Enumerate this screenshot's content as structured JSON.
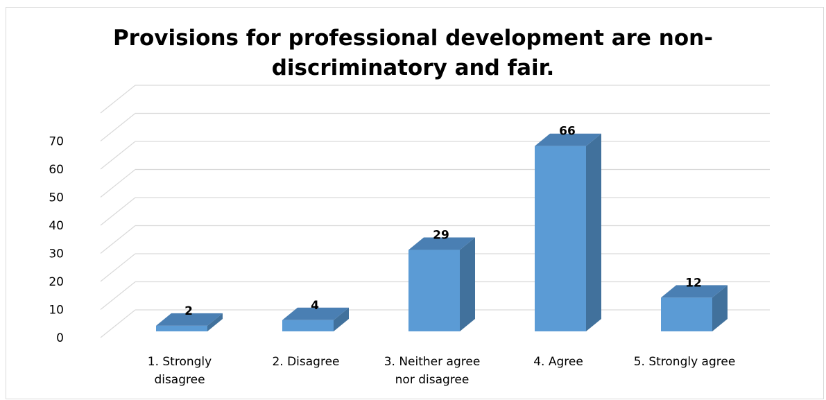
{
  "chart_data": {
    "type": "bar",
    "title_lines": [
      "Provisions for professional development are non-",
      "discriminatory and fair."
    ],
    "categories": [
      "1. Strongly disagree",
      "2. Disagree",
      "3. Neither agree nor disagree",
      "4. Agree",
      "5. Strongly agree"
    ],
    "category_label_lines": [
      [
        "1. Strongly",
        "disagree"
      ],
      [
        "2. Disagree"
      ],
      [
        "3. Neither agree",
        "nor disagree"
      ],
      [
        "4. Agree"
      ],
      [
        "5. Strongly agree"
      ]
    ],
    "values": [
      2,
      4,
      29,
      66,
      12
    ],
    "y_ticks": [
      "0",
      "10",
      "20",
      "30",
      "40",
      "50",
      "60",
      "70"
    ],
    "ylim": [
      0,
      80
    ],
    "grid": true,
    "legend": "none",
    "bar_3d": true,
    "colors": {
      "bar_front": "#5b9bd5",
      "bar_side": "#41719c",
      "bar_top": "#4a7fb3",
      "grid": "#d9d9d9"
    }
  }
}
